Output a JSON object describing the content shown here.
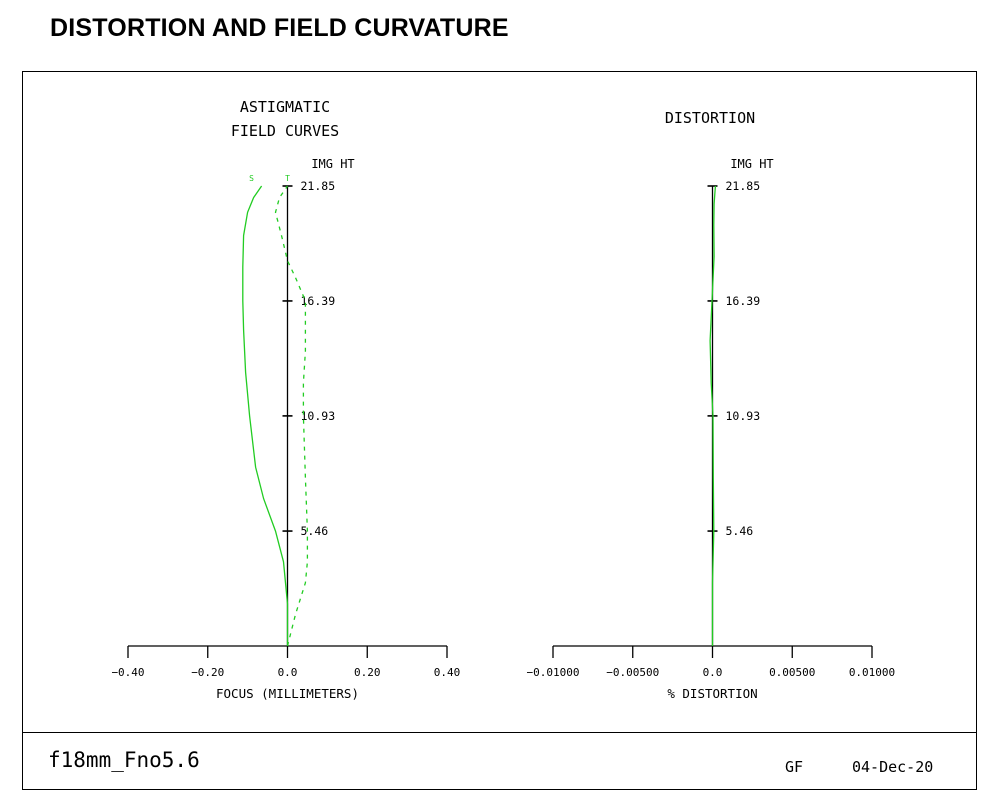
{
  "page": {
    "title": "DISTORTION AND FIELD CURVATURE"
  },
  "footer": {
    "lens_name": "f18mm_Fno5.6",
    "initials": "GF",
    "date": "04-Dec-20"
  },
  "colors": {
    "curve": "#22cc22",
    "axis": "#000000"
  },
  "chart_data": [
    {
      "type": "line",
      "title": [
        "ASTIGMATIC",
        "FIELD CURVES"
      ],
      "y_axis_title": "IMG HT",
      "y_ticks": [
        5.46,
        10.93,
        16.39,
        21.85
      ],
      "y_tick_labels": [
        "5.46",
        "10.93",
        "16.39",
        "21.85"
      ],
      "ylim": [
        0,
        21.85
      ],
      "xlabel": "FOCUS (MILLIMETERS)",
      "xlim": [
        -0.4,
        0.4
      ],
      "x_ticks": [
        -0.4,
        -0.2,
        0.0,
        0.2,
        0.4
      ],
      "x_tick_labels": [
        "−0.40",
        "−0.20",
        "0.0",
        "0.20",
        "0.40"
      ],
      "series": [
        {
          "name": "S",
          "style": "solid",
          "points": [
            [
              0.0,
              0.0
            ],
            [
              0.0,
              2.0
            ],
            [
              -0.01,
              4.0
            ],
            [
              -0.03,
              5.46
            ],
            [
              -0.06,
              7.0
            ],
            [
              -0.08,
              8.5
            ],
            [
              -0.095,
              10.93
            ],
            [
              -0.105,
              13.0
            ],
            [
              -0.11,
              15.0
            ],
            [
              -0.112,
              16.39
            ],
            [
              -0.112,
              18.0
            ],
            [
              -0.11,
              19.5
            ],
            [
              -0.1,
              20.6
            ],
            [
              -0.085,
              21.3
            ],
            [
              -0.065,
              21.85
            ]
          ]
        },
        {
          "name": "T",
          "style": "dashed",
          "points": [
            [
              0.0,
              0.0
            ],
            [
              0.02,
              1.5
            ],
            [
              0.045,
              3.0
            ],
            [
              0.05,
              4.0
            ],
            [
              0.05,
              5.46
            ],
            [
              0.045,
              8.0
            ],
            [
              0.04,
              10.93
            ],
            [
              0.04,
              12.5
            ],
            [
              0.045,
              14.0
            ],
            [
              0.045,
              16.39
            ],
            [
              0.02,
              17.5
            ],
            [
              0.0,
              18.3
            ],
            [
              -0.015,
              19.5
            ],
            [
              -0.03,
              20.6
            ],
            [
              -0.02,
              21.3
            ],
            [
              0.0,
              21.85
            ]
          ]
        }
      ]
    },
    {
      "type": "line",
      "title": [
        "DISTORTION"
      ],
      "y_axis_title": "IMG HT",
      "y_ticks": [
        5.46,
        10.93,
        16.39,
        21.85
      ],
      "y_tick_labels": [
        "5.46",
        "10.93",
        "16.39",
        "21.85"
      ],
      "ylim": [
        0,
        21.85
      ],
      "xlabel": "% DISTORTION",
      "xlim": [
        -0.01,
        0.01
      ],
      "x_ticks": [
        -0.01,
        -0.005,
        0.0,
        0.005,
        0.01
      ],
      "x_tick_labels": [
        "−0.01000",
        "−0.00500",
        "0.0",
        "0.00500",
        "0.01000"
      ],
      "series": [
        {
          "style": "solid",
          "points": [
            [
              0.0,
              0.0
            ],
            [
              0.0,
              3.0
            ],
            [
              8e-05,
              5.46
            ],
            [
              5e-05,
              8.0
            ],
            [
              3e-05,
              10.93
            ],
            [
              -8e-05,
              12.5
            ],
            [
              -0.00015,
              14.5
            ],
            [
              -3e-05,
              16.39
            ],
            [
              0.0001,
              18.5
            ],
            [
              8e-05,
              20.0
            ],
            [
              0.0001,
              21.0
            ],
            [
              0.00018,
              21.85
            ]
          ]
        }
      ]
    }
  ]
}
